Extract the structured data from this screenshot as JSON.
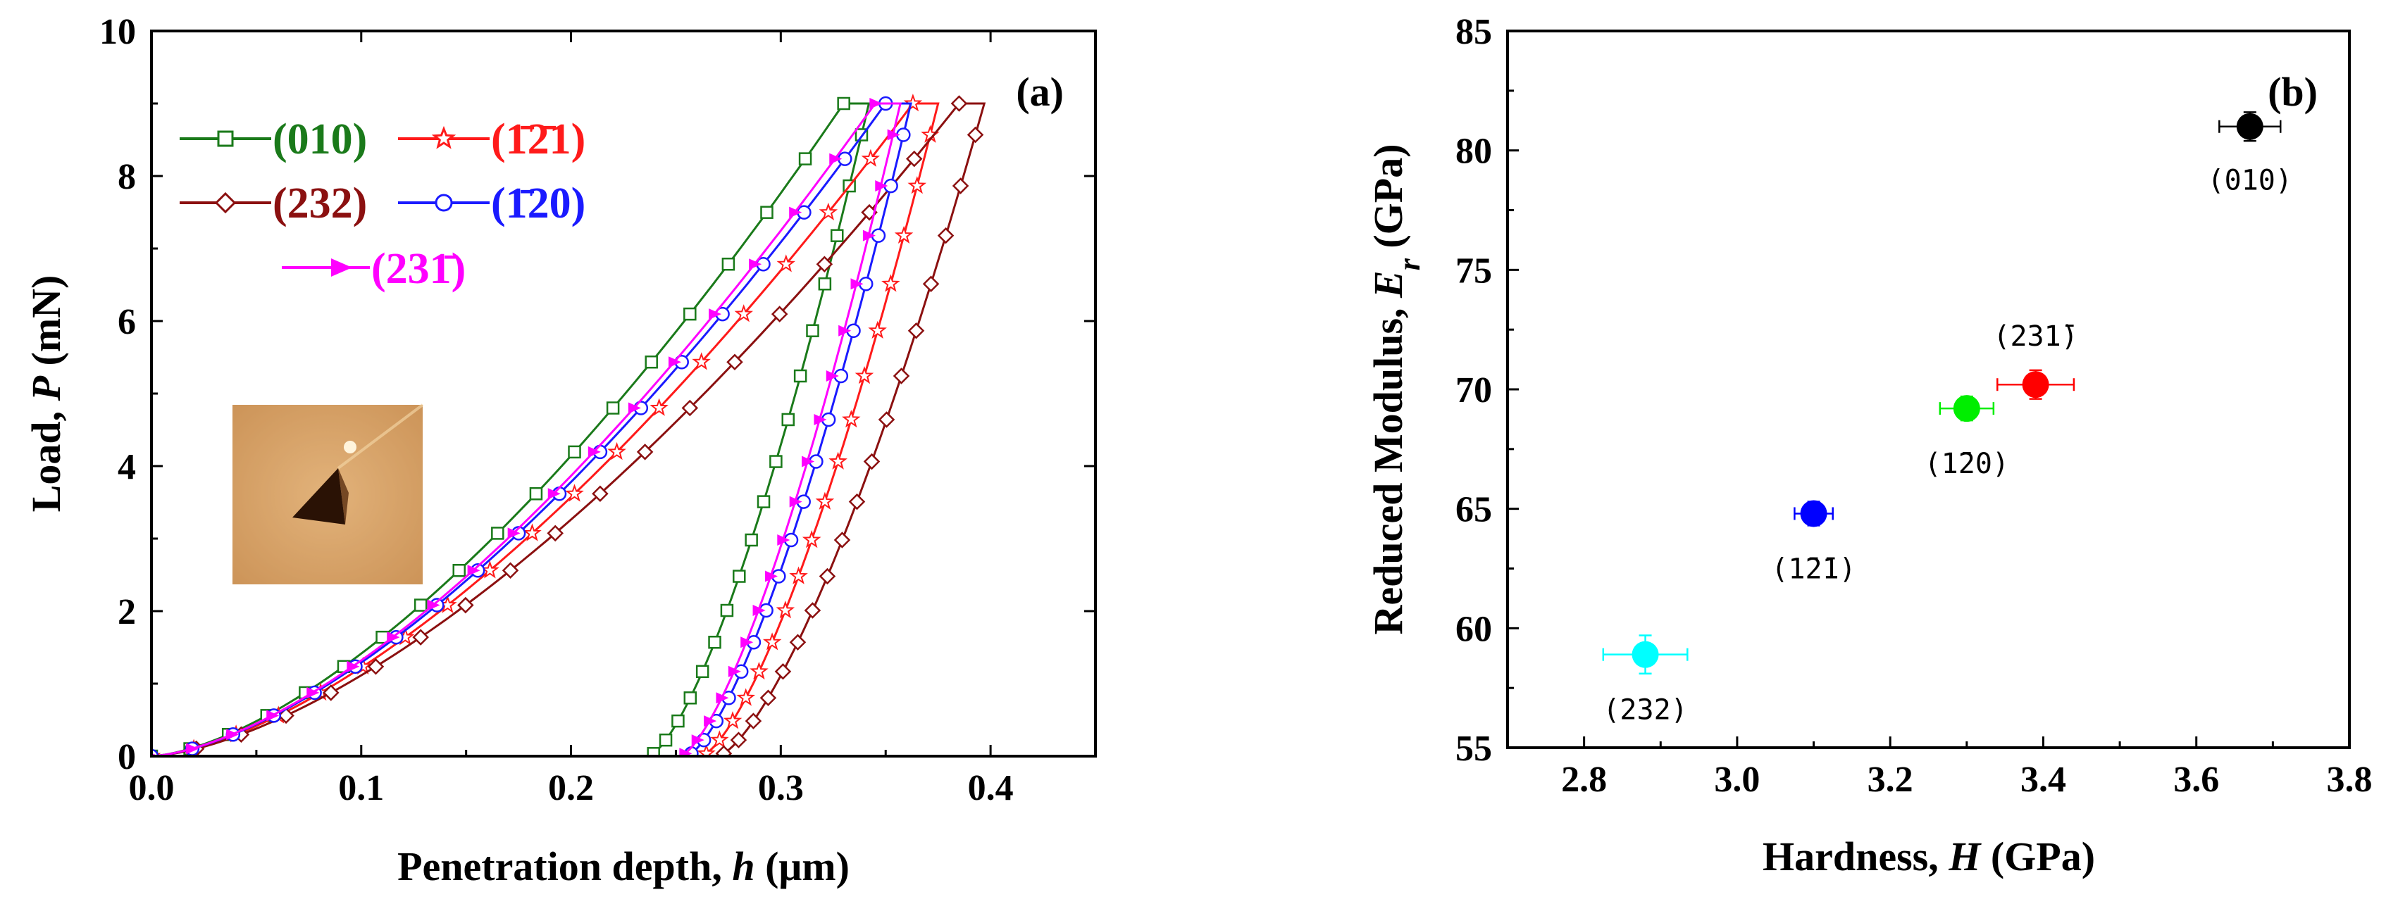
{
  "chart_data": [
    {
      "type": "line",
      "panel_label": "(a)",
      "xlabel": "Penetration depth, ",
      "xlabel_var": "h",
      "xlabel_unit": " (μm)",
      "ylabel": "Load, ",
      "ylabel_var": "P",
      "ylabel_unit": " (mN)",
      "xlim": [
        0.0,
        0.45
      ],
      "ylim": [
        0,
        10
      ],
      "xticks": [
        "0.0",
        "0.1",
        "0.2",
        "0.3",
        "0.4"
      ],
      "yticks": [
        "0",
        "2",
        "4",
        "6",
        "8",
        "10"
      ],
      "inset": "AFM image of residual triangular indent",
      "series": [
        {
          "name": "(010)",
          "color": "#1a7a1a",
          "marker": "square",
          "hmax": 0.33,
          "pmax": 9.0,
          "hf": 0.237
        },
        {
          "name": "(1̄2̄1)",
          "color": "#ff1a1a",
          "marker": "star",
          "hmax": 0.363,
          "pmax": 9.0,
          "hf": 0.262
        },
        {
          "name": "(232)",
          "color": "#8b1010",
          "marker": "diamond",
          "hmax": 0.385,
          "pmax": 9.0,
          "hf": 0.27
        },
        {
          "name": "(1̄20)",
          "color": "#1a1aff",
          "marker": "circle",
          "hmax": 0.35,
          "pmax": 9.0,
          "hf": 0.255
        },
        {
          "name": "(231̄)",
          "color": "#ff00ff",
          "marker": "triangle",
          "hmax": 0.345,
          "pmax": 9.0,
          "hf": 0.252
        }
      ]
    },
    {
      "type": "scatter",
      "panel_label": "(b)",
      "xlabel": "Hardness, ",
      "xlabel_var": "H",
      "xlabel_unit": " (GPa)",
      "ylabel": "Reduced Modulus, ",
      "ylabel_var": "E",
      "ylabel_sub": "r",
      "ylabel_unit": " (GPa)",
      "xlim": [
        2.7,
        3.8
      ],
      "ylim": [
        55,
        85
      ],
      "xticks": [
        "2.8",
        "3.0",
        "3.2",
        "3.4",
        "3.6",
        "3.8"
      ],
      "yticks": [
        "55",
        "60",
        "65",
        "70",
        "75",
        "80",
        "85"
      ],
      "points": [
        {
          "label": "(232)",
          "x": 2.88,
          "y": 58.9,
          "xerr": 0.055,
          "yerr": 0.8,
          "color": "#00ffff"
        },
        {
          "label": "(1̄2̄1)",
          "x": 3.1,
          "y": 64.8,
          "xerr": 0.025,
          "yerr": 0.5,
          "color": "#0000ff"
        },
        {
          "label": "(1̄20)",
          "x": 3.3,
          "y": 69.2,
          "xerr": 0.035,
          "yerr": 0.5,
          "color": "#00ee00"
        },
        {
          "label": "(231̄)",
          "x": 3.39,
          "y": 70.2,
          "xerr": 0.05,
          "yerr": 0.6,
          "color": "#ff0000"
        },
        {
          "label": "(010)",
          "x": 3.67,
          "y": 81.0,
          "xerr": 0.04,
          "yerr": 0.6,
          "color": "#000000"
        }
      ]
    }
  ]
}
